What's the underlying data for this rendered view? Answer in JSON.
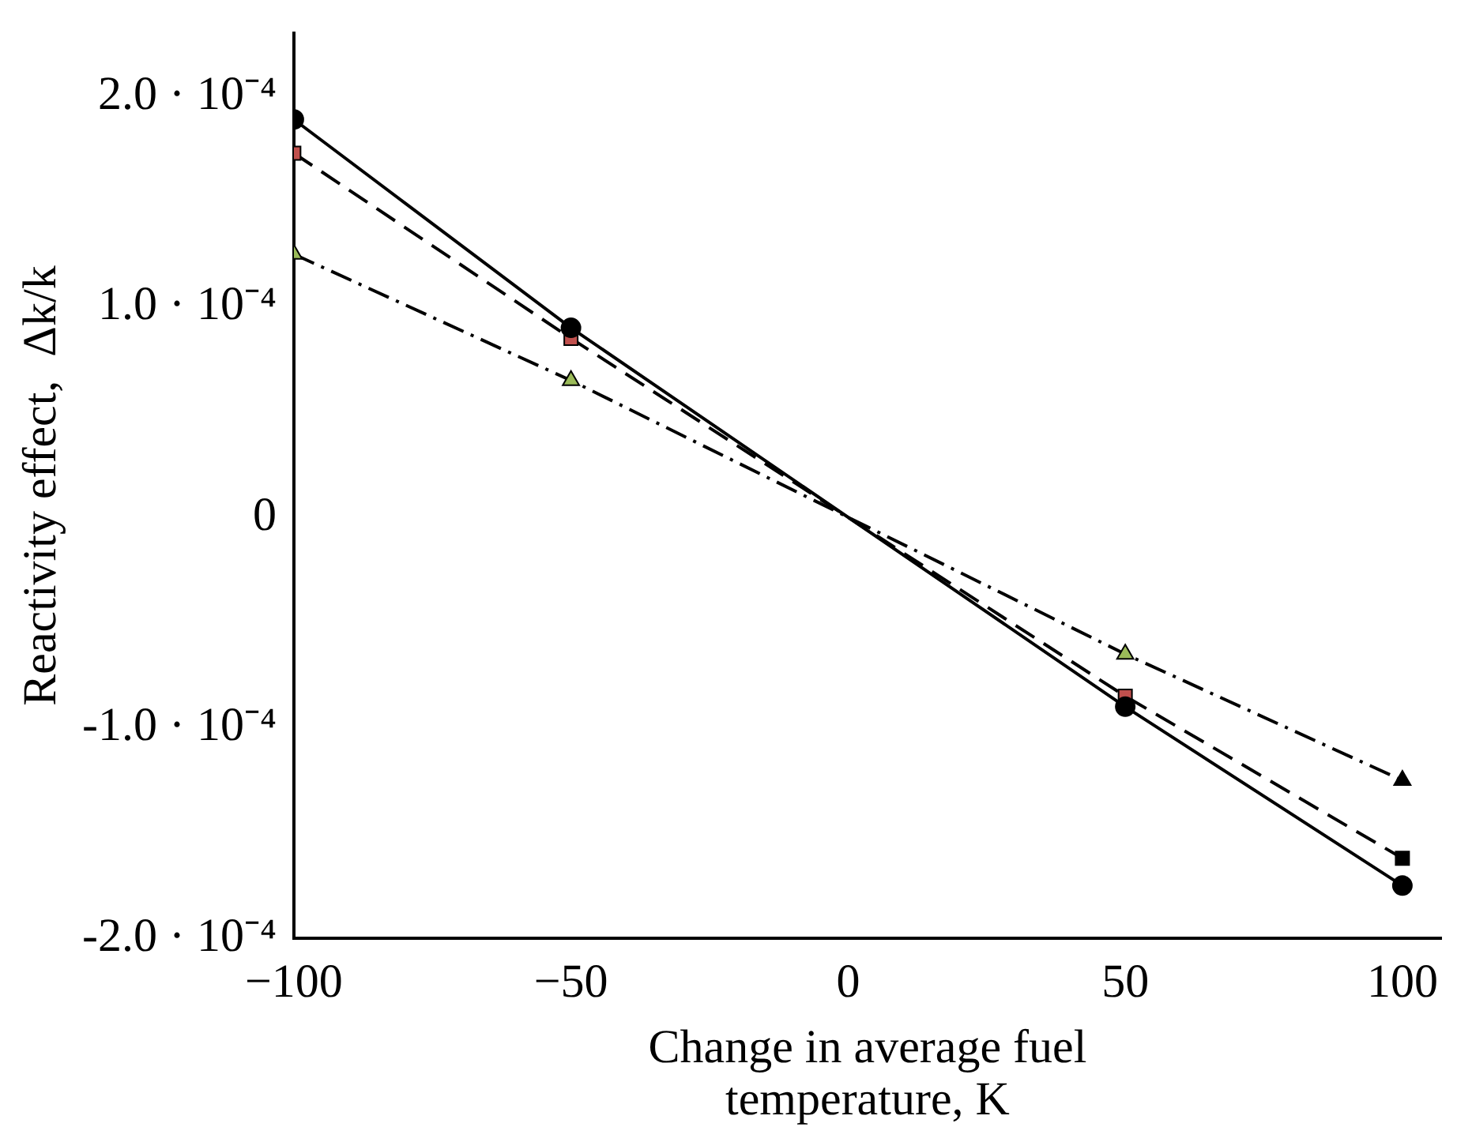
{
  "chart_data": {
    "type": "line",
    "xlabel": "Change in average fuel temperature, K",
    "ylabel": "Reactivity effect,  Δk/k",
    "x": [
      -100,
      -50,
      50,
      100
    ],
    "series": [
      {
        "color": "#000000",
        "colors": [
          "#000000",
          "#000000",
          "#000000",
          "#000000"
        ],
        "marker": "circle",
        "line_style": "solid",
        "values": [
          0.000189,
          9e-05,
          -9e-05,
          -0.000175
        ]
      },
      {
        "color": "#000000",
        "colors": [
          "#c0504d",
          "#c0504d",
          "#c0504d",
          "#000000"
        ],
        "marker": "square",
        "line_style": "dashed",
        "values": [
          0.000173,
          8.5e-05,
          -8.5e-05,
          -0.000162
        ]
      },
      {
        "color": "#000000",
        "colors": [
          "#9bbb59",
          "#9bbb59",
          "#9bbb59",
          "#000000"
        ],
        "marker": "triangle",
        "line_style": "dashdot",
        "values": [
          0.000125,
          6.5e-05,
          -6.5e-05,
          -0.000125
        ]
      }
    ],
    "xlim": [
      -100,
      107
    ],
    "xticks": [
      {
        "value": -100,
        "label": "−100"
      },
      {
        "value": -50,
        "label": "−50"
      },
      0,
      50,
      100
    ],
    "ylim": [
      -0.0002,
      0.00023
    ],
    "yticks": [
      {
        "value": -0.0002,
        "label": "-2.0 · 10⁻⁴"
      },
      {
        "value": -0.0001,
        "label": "-1.0 · 10⁻⁴"
      },
      0,
      {
        "value": 0.0001,
        "label": "1.0 · 10⁻⁴"
      },
      {
        "value": 0.0002,
        "label": "2.0 · 10⁻⁴"
      }
    ],
    "grid": false,
    "legend": false
  }
}
